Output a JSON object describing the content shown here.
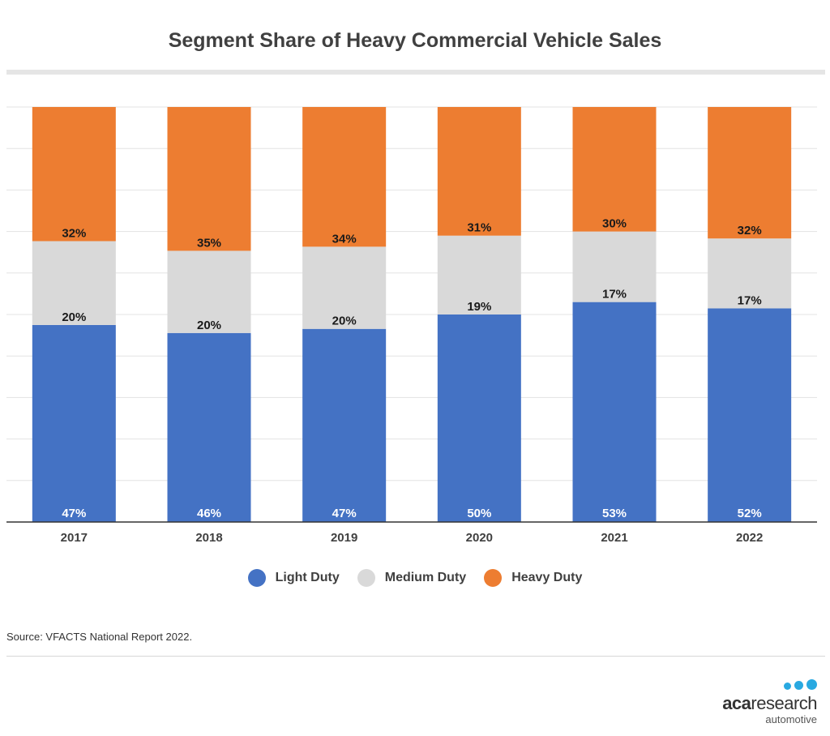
{
  "title": "Segment Share of Heavy Commercial Vehicle Sales",
  "source": "Source: VFACTS National Report 2022.",
  "logo": {
    "word_bold": "aca",
    "word_rest": "research",
    "sub": "automotive"
  },
  "colors": {
    "light": "#4472c4",
    "medium": "#d9d9d9",
    "heavy": "#ed7d31"
  },
  "chart_data": {
    "type": "bar",
    "stacked": true,
    "title": "Segment Share of Heavy Commercial Vehicle Sales",
    "categories": [
      "2017",
      "2018",
      "2019",
      "2020",
      "2021",
      "2022"
    ],
    "series": [
      {
        "name": "Light Duty",
        "values": [
          47,
          46,
          47,
          50,
          53,
          52
        ],
        "labels": [
          "47%",
          "46%",
          "47%",
          "50%",
          "53%",
          "52%"
        ]
      },
      {
        "name": "Medium Duty",
        "values": [
          20,
          20,
          20,
          19,
          17,
          17
        ],
        "labels": [
          "20%",
          "20%",
          "20%",
          "19%",
          "17%",
          "17%"
        ]
      },
      {
        "name": "Heavy Duty",
        "values": [
          32,
          35,
          34,
          31,
          30,
          32
        ],
        "labels": [
          "32%",
          "35%",
          "34%",
          "31%",
          "30%",
          "32%"
        ]
      }
    ],
    "legend_position": "bottom",
    "grid": true
  }
}
